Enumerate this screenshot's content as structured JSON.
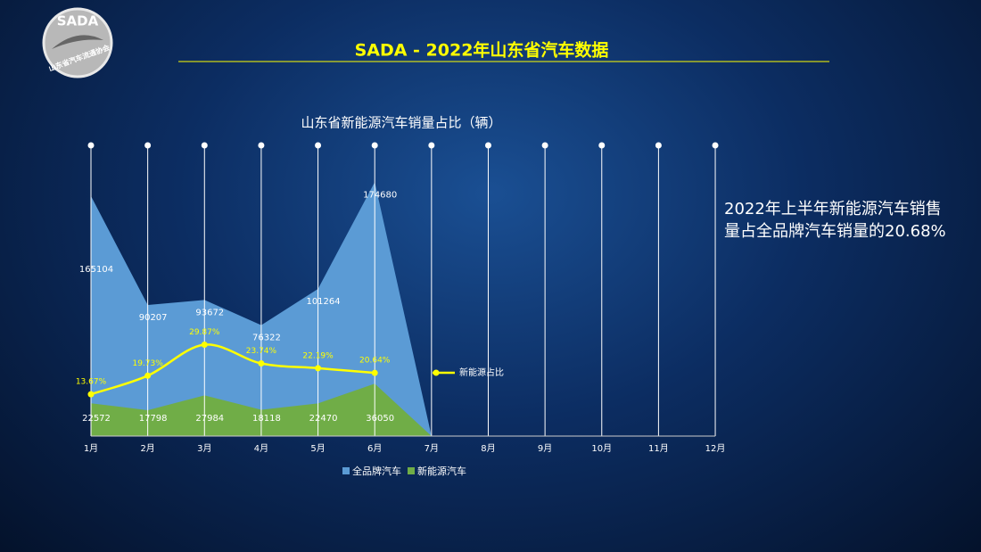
{
  "header": {
    "title": "SADA -  2022年山东省汽车数据"
  },
  "logo": {
    "name": "SADA",
    "subtitle": "山东省汽车流通协会"
  },
  "chart_data": {
    "type": "area",
    "title": "山东省新能源汽车销量占比（辆）",
    "annotation": "2022年上半年新能源汽车销售量占全品牌汽车销量的20.68%",
    "categories": [
      "1月",
      "2月",
      "3月",
      "4月",
      "5月",
      "6月",
      "7月",
      "8月",
      "9月",
      "10月",
      "11月",
      "12月"
    ],
    "series": [
      {
        "name": "全品牌汽车",
        "color": "#5b9bd5",
        "values": [
          165104,
          90207,
          93672,
          76322,
          101264,
          174680,
          0,
          null,
          null,
          null,
          null,
          null
        ]
      },
      {
        "name": "新能源汽车",
        "color": "#70ad47",
        "values": [
          22572,
          17798,
          27984,
          18118,
          22470,
          36050,
          0,
          null,
          null,
          null,
          null,
          null
        ]
      },
      {
        "name": "新能源占比",
        "color": "#ffff00",
        "type": "line",
        "axis": "y2",
        "values": [
          13.67,
          19.73,
          29.87,
          23.74,
          22.19,
          20.64,
          null,
          null,
          null,
          null,
          null,
          null
        ],
        "value_labels": [
          "13.67%",
          "19.73%",
          "29.87%",
          "23.74%",
          "22.19%",
          "20.64%",
          null,
          null,
          null,
          null,
          null,
          null
        ]
      }
    ],
    "ylim": [
      0,
      200000
    ],
    "y2lim": [
      0,
      95
    ],
    "legend": "bottom",
    "grid": true
  }
}
